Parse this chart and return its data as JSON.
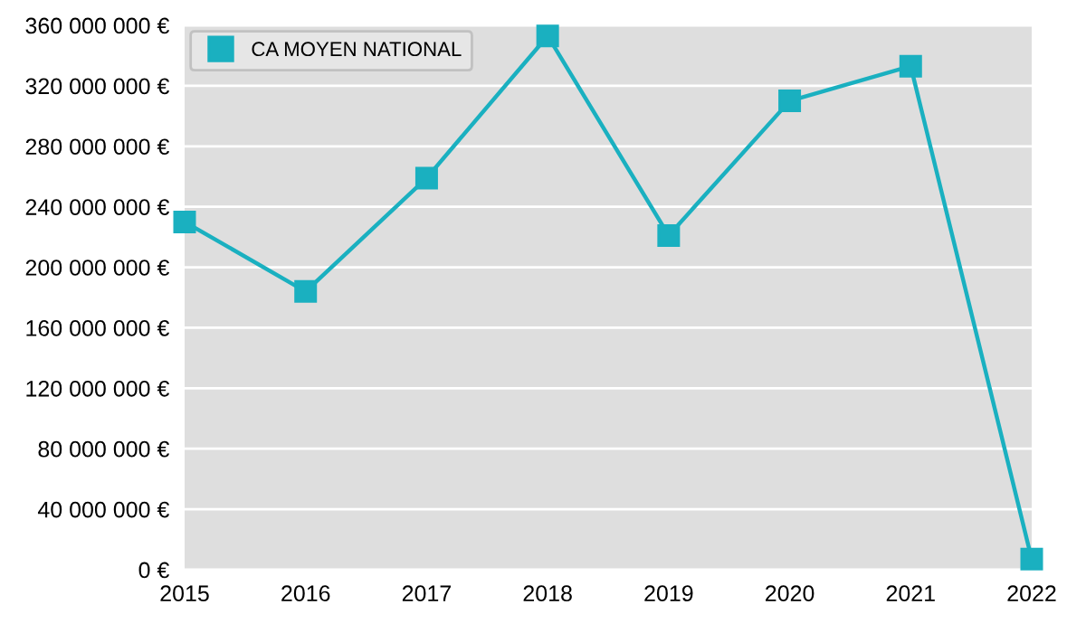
{
  "chart_data": {
    "type": "line",
    "categories": [
      "2015",
      "2016",
      "2017",
      "2018",
      "2019",
      "2020",
      "2021",
      "2022"
    ],
    "series": [
      {
        "name": "CA MOYEN NATIONAL",
        "color": "#1ab0c0",
        "values": [
          230000000,
          184000000,
          259000000,
          353000000,
          221000000,
          310000000,
          333000000,
          7000000
        ]
      }
    ],
    "ylim": [
      0,
      360000000
    ],
    "yticks": [
      {
        "value": 0,
        "label": "0 €"
      },
      {
        "value": 40000000,
        "label": "40 000 000 €"
      },
      {
        "value": 80000000,
        "label": "80 000 000 €"
      },
      {
        "value": 120000000,
        "label": "120 000 000 €"
      },
      {
        "value": 160000000,
        "label": "160 000 000 €"
      },
      {
        "value": 200000000,
        "label": "200 000 000 €"
      },
      {
        "value": 240000000,
        "label": "240 000 000 €"
      },
      {
        "value": 280000000,
        "label": "280 000 000 €"
      },
      {
        "value": 320000000,
        "label": "320 000 000 €"
      },
      {
        "value": 360000000,
        "label": "360 000 000 €"
      }
    ],
    "grid": "y",
    "legend": "top left",
    "marker": "square",
    "line_style": "solid"
  }
}
